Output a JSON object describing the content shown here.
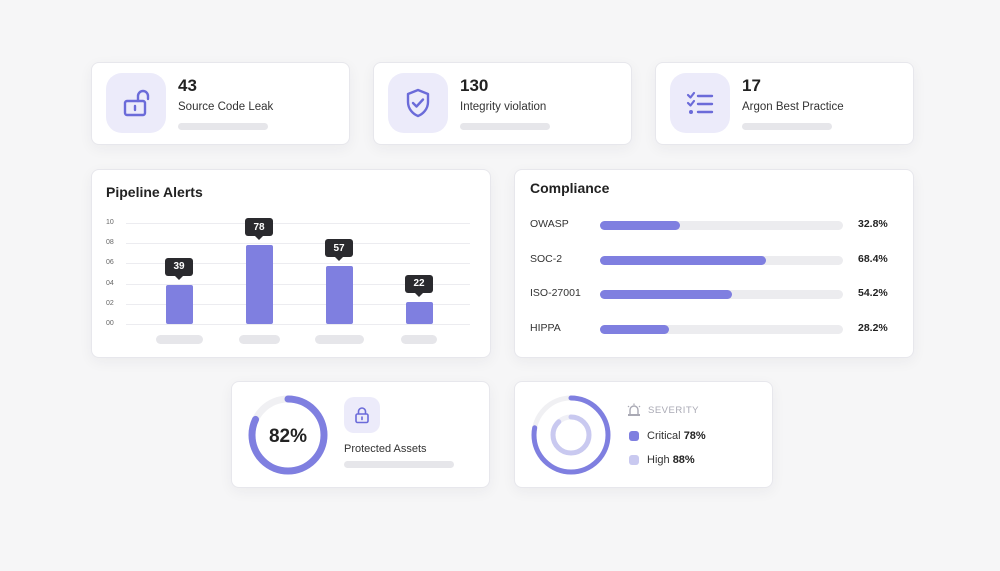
{
  "stats": [
    {
      "value": "43",
      "label": "Source Code Leak",
      "icon": "unlock-icon"
    },
    {
      "value": "130",
      "label": "Integrity violation",
      "icon": "shield-check-icon"
    },
    {
      "value": "17",
      "label": "Argon Best Practice",
      "icon": "checklist-icon"
    }
  ],
  "pipeline": {
    "title": "Pipeline Alerts"
  },
  "chart_data": {
    "type": "bar",
    "title": "Pipeline Alerts",
    "y_ticks": [
      "10",
      "08",
      "06",
      "04",
      "02",
      "00"
    ],
    "values": [
      39,
      78,
      57,
      22
    ],
    "value_labels": [
      "39",
      "78",
      "57",
      "22"
    ],
    "ylim": [
      0,
      100
    ],
    "grid": true,
    "bar_color": "#7f7fe0"
  },
  "compliance": {
    "title": "Compliance",
    "items": [
      {
        "name": "OWASP",
        "value": "32.8%",
        "fraction": 0.328
      },
      {
        "name": "SOC-2",
        "value": "68.4%",
        "fraction": 0.684
      },
      {
        "name": "ISO-27001",
        "value": "54.2%",
        "fraction": 0.542
      },
      {
        "name": "HIPPA",
        "value": "28.2%",
        "fraction": 0.282
      }
    ]
  },
  "protected": {
    "percent_label": "82%",
    "fraction": 0.82,
    "label": "Protected Assets",
    "icon": "lock-icon"
  },
  "severity": {
    "title": "SEVERITY",
    "icon": "siren-icon",
    "critical": {
      "name": "Critical",
      "value": "78%",
      "fraction": 0.78,
      "color": "#7f7fe0"
    },
    "high": {
      "name": "High",
      "value": "88%",
      "fraction": 0.88,
      "color": "#c9c9f0"
    }
  },
  "colors": {
    "accent": "#7f7fe0",
    "accent_light": "#c9c9f0",
    "tile_bg": "#ecebfa",
    "track": "#ececef"
  }
}
